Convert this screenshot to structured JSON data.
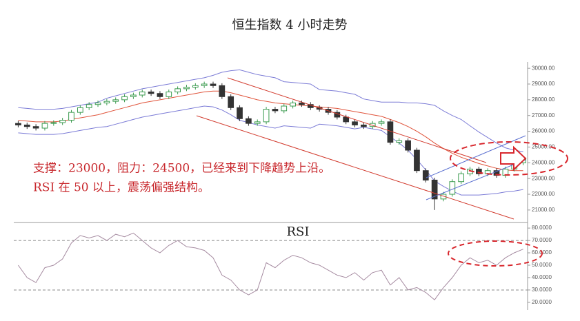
{
  "chart_data": [
    {
      "type": "candlestick",
      "title": "恒生指数 4 小时走势",
      "annotations": [
        "支撑：23000，阻力：24500，已经来到下降趋势上沿。",
        "RSI 在 50 以上，震荡偏强结构。"
      ],
      "up_color": "#3a9a4e",
      "down_color": "#333333",
      "open": [
        26500,
        26400,
        26300,
        26200,
        26500,
        26550,
        26700,
        27200,
        27500,
        27700,
        27800,
        27900,
        28000,
        28200,
        28300,
        28500,
        28400,
        28200,
        28500,
        28700,
        28800,
        28900,
        29000,
        28900,
        28200,
        27500,
        26800,
        26500,
        26600,
        27400,
        27300,
        27600,
        27800,
        27700,
        27500,
        27400,
        27200,
        26900,
        26600,
        26400,
        26300,
        26500,
        26600,
        25300,
        25400,
        24800,
        23500,
        22900,
        21700,
        22000,
        22800,
        23300,
        23600,
        23300,
        23500,
        23200,
        23600,
        24000
      ],
      "high": [
        26650,
        26550,
        26450,
        26650,
        26700,
        26850,
        27350,
        27650,
        27850,
        27950,
        28050,
        28150,
        28350,
        28450,
        28650,
        28650,
        28550,
        28650,
        28850,
        28950,
        29050,
        29150,
        29150,
        29050,
        28350,
        27650,
        26950,
        26750,
        27550,
        27550,
        27750,
        27950,
        27950,
        27850,
        27650,
        27550,
        27350,
        27050,
        26750,
        26550,
        26650,
        26750,
        26750,
        25550,
        25550,
        24950,
        23650,
        23050,
        22150,
        22950,
        23450,
        23750,
        23750,
        23650,
        23650,
        23750,
        24150,
        24450
      ],
      "low": [
        26250,
        26150,
        26050,
        26050,
        26350,
        26400,
        26550,
        27050,
        27350,
        27550,
        27650,
        27750,
        27850,
        28050,
        28150,
        28250,
        28050,
        28050,
        28350,
        28550,
        28650,
        28750,
        28750,
        28050,
        27350,
        26650,
        26350,
        26350,
        26450,
        27150,
        27150,
        27450,
        27550,
        27350,
        27250,
        27050,
        26750,
        26450,
        26250,
        26150,
        26150,
        26350,
        25150,
        25150,
        24650,
        23350,
        22750,
        21000,
        21550,
        21850,
        22650,
        23150,
        23150,
        23150,
        23050,
        23050,
        23450,
        23850
      ],
      "close": [
        26400,
        26300,
        26200,
        26500,
        26550,
        26700,
        27200,
        27500,
        27700,
        27800,
        27900,
        28000,
        28200,
        28300,
        28500,
        28400,
        28200,
        28500,
        28700,
        28800,
        28900,
        29000,
        28900,
        28200,
        27500,
        26800,
        26500,
        26600,
        27400,
        27300,
        27600,
        27800,
        27700,
        27500,
        27400,
        27200,
        26900,
        26600,
        26400,
        26300,
        26500,
        26600,
        25300,
        25400,
        24800,
        23500,
        22900,
        21700,
        22000,
        22800,
        23300,
        23600,
        23300,
        23500,
        23200,
        23600,
        24000,
        24300
      ],
      "series": [
        {
          "color": "#7b7bd6",
          "values": [
            27500,
            27450,
            27400,
            27400,
            27400,
            27450,
            27550,
            27650,
            27750,
            27850,
            28100,
            28250,
            28400,
            28550,
            28700,
            28800,
            28900,
            29000,
            29100,
            29200,
            29300,
            29400,
            29550,
            29750,
            29850,
            29900,
            29750,
            29600,
            29500,
            29400,
            29150,
            29100,
            29050,
            29000,
            28650,
            28600,
            28550,
            28450,
            28350,
            28050,
            27950,
            27850,
            27850,
            27850,
            27800,
            27800,
            27750,
            27650,
            27300,
            27000,
            26750,
            26350,
            25950,
            25600,
            25250,
            24950,
            24800,
            24700
          ]
        },
        {
          "color": "#e0533a",
          "values": [
            26700,
            26650,
            26600,
            26600,
            26600,
            26650,
            26750,
            26850,
            26950,
            27050,
            27200,
            27350,
            27500,
            27650,
            27800,
            27900,
            28000,
            28100,
            28200,
            28300,
            28400,
            28500,
            28550,
            28550,
            28450,
            28300,
            28150,
            28000,
            27900,
            27800,
            27750,
            27700,
            27650,
            27600,
            27550,
            27500,
            27450,
            27350,
            27250,
            27150,
            27050,
            26950,
            26750,
            26550,
            26300,
            26000,
            25650,
            25250,
            24900,
            24600,
            24350,
            24150,
            23950,
            23800,
            23650,
            23550,
            23500,
            23500
          ]
        },
        {
          "color": "#7b7bd6",
          "values": [
            25900,
            25850,
            25800,
            25800,
            25800,
            25850,
            25950,
            26050,
            26150,
            26250,
            26300,
            26450,
            26600,
            26750,
            26900,
            27000,
            27100,
            27200,
            27300,
            27400,
            27500,
            27600,
            27550,
            27350,
            27050,
            26700,
            26550,
            26400,
            26300,
            26200,
            26350,
            26300,
            26250,
            26200,
            26450,
            26400,
            26350,
            26250,
            26150,
            26250,
            26150,
            26050,
            25650,
            25250,
            24800,
            24200,
            23550,
            22850,
            22500,
            22200,
            21950,
            21950,
            21950,
            22000,
            22050,
            22150,
            22200,
            22300
          ]
        }
      ],
      "ylim": [
        20250,
        30400
      ],
      "yticks": [
        {
          "value": 21000,
          "label": "21000.00"
        },
        {
          "value": 22000,
          "label": "22000.00"
        },
        {
          "value": 23000,
          "label": "23000.00"
        },
        {
          "value": 24000,
          "label": "24000.00"
        },
        {
          "value": 25000,
          "label": "25000.00"
        },
        {
          "value": 26000,
          "label": "26000.00"
        },
        {
          "value": 27000,
          "label": "27000.00"
        },
        {
          "value": 28000,
          "label": "28000.00"
        },
        {
          "value": 29000,
          "label": "29000.00"
        },
        {
          "value": 30000,
          "label": "30000.00"
        }
      ]
    },
    {
      "type": "line",
      "title": "RSI",
      "color": "#a58aa0",
      "values": [
        50,
        40,
        36,
        48,
        50,
        55,
        68,
        74,
        72,
        74,
        70,
        75,
        73,
        76,
        70,
        64,
        60,
        66,
        70,
        65,
        64,
        62,
        56,
        42,
        38,
        30,
        26,
        30,
        52,
        48,
        54,
        58,
        56,
        52,
        50,
        46,
        42,
        40,
        44,
        38,
        44,
        46,
        34,
        40,
        30,
        32,
        28,
        22,
        32,
        40,
        50,
        56,
        52,
        54,
        50,
        56,
        60,
        63
      ],
      "reference_lines": [
        30,
        70
      ],
      "ylim": [
        15.5,
        83.4
      ],
      "yticks": [
        {
          "value": 20,
          "label": "20.0000"
        },
        {
          "value": 30,
          "label": "30.0000"
        },
        {
          "value": 40,
          "label": "40.0000"
        },
        {
          "value": 50,
          "label": "50.0000"
        },
        {
          "value": 60,
          "label": "60.0000"
        },
        {
          "value": 70,
          "label": "70.0000"
        },
        {
          "value": 80,
          "label": "80.0000"
        }
      ]
    }
  ]
}
